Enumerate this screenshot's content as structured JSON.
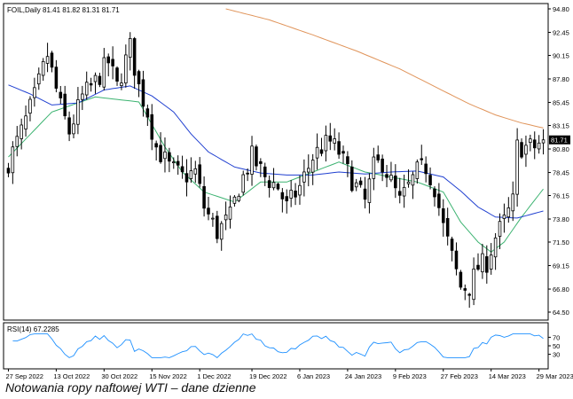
{
  "header": {
    "symbol_info": "FOIL,Daily  81.41 81.82 81.31 81.71"
  },
  "caption": "Notowania ropy naftowej WTI – dane dzienne",
  "rsi_panel": {
    "label": "RSI(14) 67.2285"
  },
  "colors": {
    "candle_outline": "#000000",
    "bull_body": "#ffffff",
    "bear_body": "#000000",
    "ma_short": "#3cb371",
    "ma_mid": "#1f3fd0",
    "ma_long": "#e0945a",
    "rsi_line": "#1e90ff",
    "last_price_badge": "#000000"
  },
  "chart_data": [
    {
      "type": "candlestick",
      "y_axis_ticks": [
        "94.80",
        "92.45",
        "90.15",
        "87.80",
        "85.45",
        "83.15",
        "80.80",
        "78.45",
        "76.15",
        "73.80",
        "71.50",
        "69.15",
        "66.80",
        "64.50"
      ],
      "ylim": [
        64.5,
        94.8
      ],
      "x_tick_labels": [
        "27 Sep 2022",
        "13 Oct 2022",
        "30 Oct 2022",
        "15 Nov 2022",
        "1 Dec 2022",
        "19 Dec 2022",
        "6 Jan 2023",
        "24 Jan 2023",
        "9 Feb 2023",
        "27 Feb 2023",
        "14 Mar 2023",
        "29 Mar 2023"
      ],
      "last_price": "81.71",
      "close_anchors": [
        [
          0,
          79.5
        ],
        [
          3,
          82.5
        ],
        [
          6,
          86
        ],
        [
          9,
          90.2
        ],
        [
          12,
          85
        ],
        [
          14,
          82.5
        ],
        [
          17,
          86
        ],
        [
          20,
          87.5
        ],
        [
          23,
          89.5
        ],
        [
          25,
          87
        ],
        [
          28,
          91
        ],
        [
          30,
          87
        ],
        [
          32,
          84.5
        ],
        [
          34,
          81
        ],
        [
          37,
          79
        ],
        [
          40,
          78
        ],
        [
          43,
          78.5
        ],
        [
          45,
          75
        ],
        [
          48,
          72.5
        ],
        [
          51,
          74
        ],
        [
          53,
          77
        ],
        [
          56,
          80
        ],
        [
          59,
          78
        ],
        [
          62,
          77
        ],
        [
          64,
          75
        ],
        [
          67,
          77
        ],
        [
          70,
          80
        ],
        [
          72,
          81
        ],
        [
          74,
          81.5
        ],
        [
          76,
          80.5
        ],
        [
          78,
          78.5
        ],
        [
          80,
          77
        ],
        [
          82,
          75.5
        ],
        [
          84,
          79
        ],
        [
          86,
          79.5
        ],
        [
          88,
          77.5
        ],
        [
          90,
          75.5
        ],
        [
          92,
          77
        ],
        [
          94,
          78.5
        ],
        [
          96,
          79
        ],
        [
          98,
          77
        ],
        [
          100,
          73
        ],
        [
          102,
          70
        ],
        [
          104,
          67
        ],
        [
          106,
          67
        ],
        [
          108,
          69
        ],
        [
          110,
          69.5
        ],
        [
          112,
          72
        ],
        [
          114,
          73.5
        ],
        [
          116,
          75.5
        ],
        [
          117,
          81
        ],
        [
          119,
          81
        ],
        [
          121,
          81
        ],
        [
          123,
          81.71
        ]
      ],
      "ma_short_anchors": [
        [
          0,
          80
        ],
        [
          10,
          84.5
        ],
        [
          20,
          86
        ],
        [
          30,
          85.5
        ],
        [
          36,
          81
        ],
        [
          40,
          78.5
        ],
        [
          45,
          76.5
        ],
        [
          52,
          75.5
        ],
        [
          58,
          77.5
        ],
        [
          64,
          77.5
        ],
        [
          70,
          78.5
        ],
        [
          76,
          79.5
        ],
        [
          82,
          78.5
        ],
        [
          88,
          78
        ],
        [
          94,
          77.5
        ],
        [
          100,
          76.5
        ],
        [
          104,
          73.5
        ],
        [
          108,
          71.5
        ],
        [
          111,
          70.5
        ],
        [
          114,
          71.5
        ],
        [
          118,
          74
        ],
        [
          123,
          76.8
        ]
      ],
      "ma_mid_anchors": [
        [
          0,
          87.2
        ],
        [
          5,
          86.3
        ],
        [
          10,
          85.2
        ],
        [
          16,
          85.4
        ],
        [
          22,
          86.7
        ],
        [
          28,
          87.1
        ],
        [
          33,
          86.1
        ],
        [
          38,
          84.5
        ],
        [
          42,
          82.3
        ],
        [
          46,
          80.5
        ],
        [
          52,
          79
        ],
        [
          58,
          78.4
        ],
        [
          64,
          78.2
        ],
        [
          70,
          78.2
        ],
        [
          76,
          78.5
        ],
        [
          82,
          78.3
        ],
        [
          88,
          78.5
        ],
        [
          94,
          78.6
        ],
        [
          100,
          78
        ],
        [
          104,
          76.6
        ],
        [
          108,
          75
        ],
        [
          112,
          74
        ],
        [
          117,
          73.9
        ],
        [
          123,
          74.6
        ]
      ],
      "ma_long_anchors": [
        [
          50,
          94.8
        ],
        [
          60,
          93.7
        ],
        [
          70,
          92.2
        ],
        [
          80,
          90.6
        ],
        [
          90,
          88.8
        ],
        [
          100,
          86.6
        ],
        [
          106,
          85.3
        ],
        [
          112,
          84.2
        ],
        [
          118,
          83.4
        ],
        [
          123,
          82.9
        ]
      ],
      "rsi_ticks": [
        "70",
        "50",
        "30"
      ],
      "rsi_ylim": [
        0,
        100
      ],
      "rsi_last": 67.2285
    }
  ]
}
